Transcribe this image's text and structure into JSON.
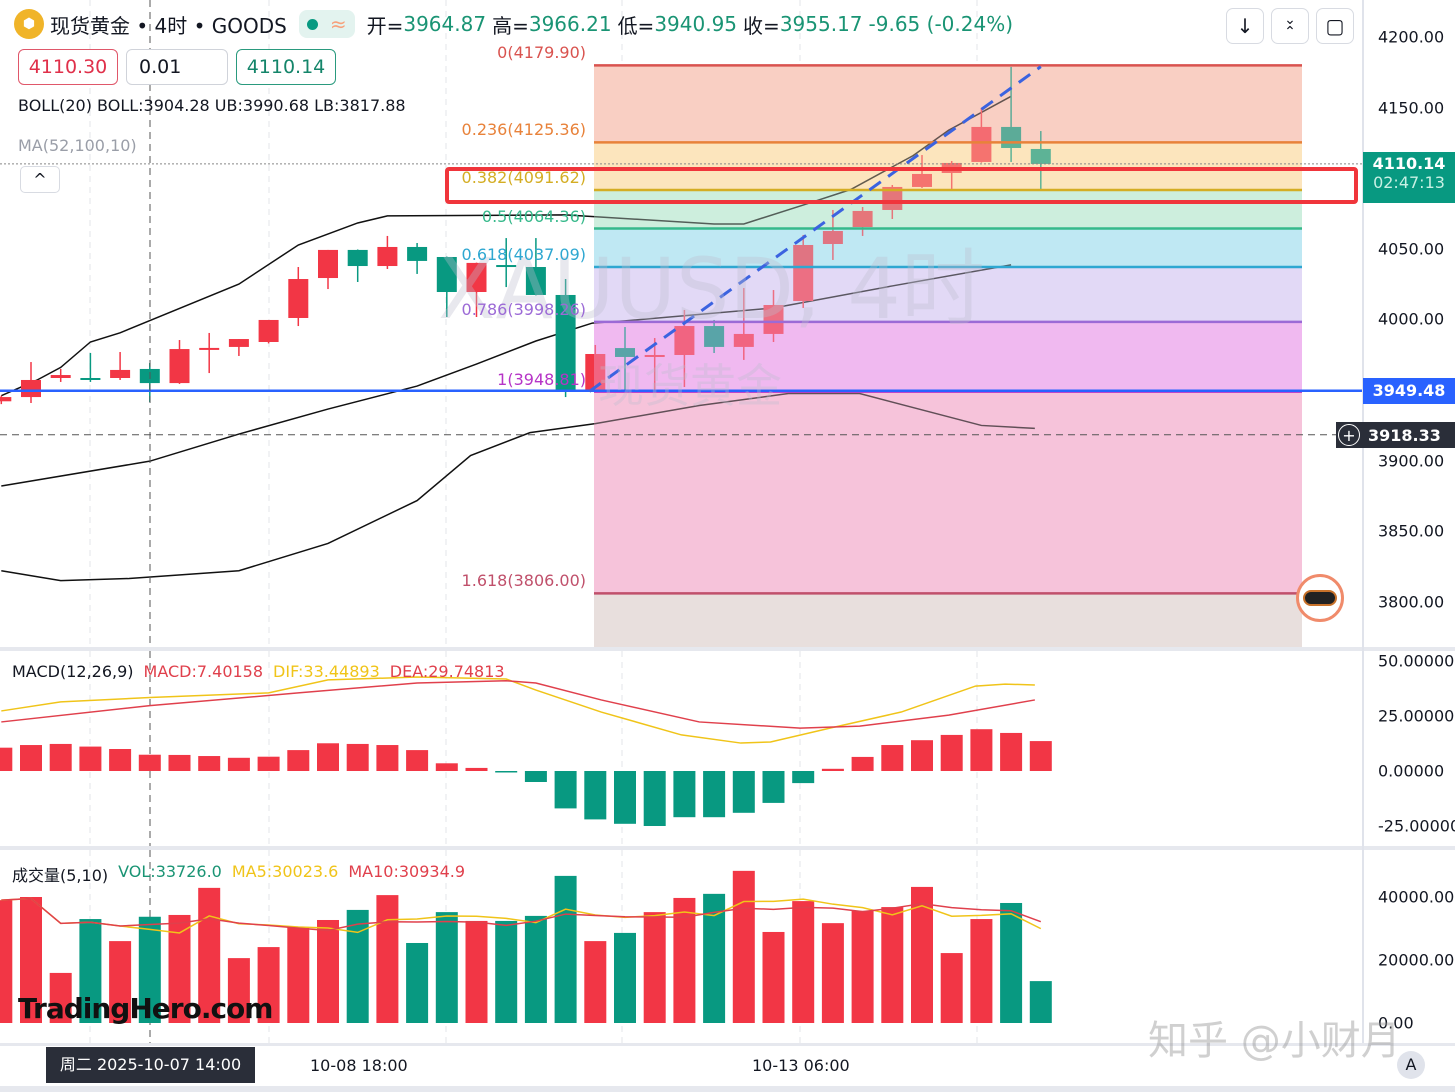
{
  "header": {
    "symbol_title": "现货黄金 • 4时 • GOODS",
    "approx_symbol": "≈",
    "open_label": "开=",
    "open": "3964.87",
    "high_label": "高=",
    "high": "3966.21",
    "low_label": "低=",
    "low": "3940.95",
    "close_label": "收=",
    "close": "3955.17",
    "change": "-9.65 (-0.24%)"
  },
  "trade": {
    "sell_price": "4110.30",
    "quantity": "0.01",
    "buy_price": "4110.14"
  },
  "indicators": {
    "boll": "BOLL(20)  BOLL:3904.28  UB:3990.68  LB:3817.88",
    "ma": "MA(52,100,10)",
    "collapse_symbol": "^"
  },
  "toolbar": {
    "down_icon": "↓",
    "collapse_icon": "⤧",
    "fullscreen_icon": "▢"
  },
  "watermark": {
    "symbol": "XAUUSD, 4时",
    "name": "现货黄金",
    "zhihu": "知乎 @小财月",
    "logo": "TradingHero.com"
  },
  "price_axis": {
    "ticks": [
      "4200.00",
      "4150.00",
      "4050.00",
      "4000.00",
      "3900.00",
      "3850.00",
      "3800.00"
    ],
    "current_price": "4110.14",
    "countdown": "02:47:13",
    "line_price": "3949.48",
    "crosshair_price": "3918.33"
  },
  "macd": {
    "label": "MACD(12,26,9)",
    "macd": "MACD:7.40158",
    "dif": "DIF:33.44893",
    "dea": "DEA:29.74813",
    "ticks": [
      "50.00000",
      "25.00000",
      "0.00000",
      "-25.00000"
    ]
  },
  "volume": {
    "label": "成交量(5,10)",
    "vol": "VOL:33726.0",
    "ma5": "MA5:30023.6",
    "ma10": "MA10:30934.9",
    "ticks": [
      "40000.00",
      "20000.00",
      "0.00"
    ]
  },
  "time_axis": {
    "crosshair": "周二 2025-10-07  14:00",
    "labels": [
      "10-08 18:00",
      "10-13 06:00"
    ],
    "auto_button": "A"
  },
  "fib_levels": [
    {
      "label": "0(4179.90)",
      "price": 4179.9,
      "color": "#d9534f",
      "fill": "#f9cfc3"
    },
    {
      "label": "0.236(4125.36)",
      "price": 4125.36,
      "color": "#e8823a",
      "fill": "#fce5bd"
    },
    {
      "label": "0.382(4091.62)",
      "price": 4091.62,
      "color": "#d4ad23",
      "fill": "#cdeedd"
    },
    {
      "label": "0.5(4064.36)",
      "price": 4064.36,
      "color": "#36b98b",
      "fill": "#bfe9f3"
    },
    {
      "label": "0.618(4037.09)",
      "price": 4037.09,
      "color": "#2ea7d1",
      "fill": "#e2d9f6"
    },
    {
      "label": "0.786(3998.26)",
      "price": 3998.26,
      "color": "#9c6ad6",
      "fill": "#f0b9f0"
    },
    {
      "label": "1(3948.81)",
      "price": 3948.81,
      "color": "#b634c7",
      "fill": "#f6c3da"
    },
    {
      "label": "1.618(3806.00)",
      "price": 3806.0,
      "color": "#c0506b",
      "fill": "#e8dfde"
    }
  ],
  "colors": {
    "up": "#f23645",
    "down": "#089981",
    "accent_blue": "#2962ff",
    "highlight": "#f0353b"
  },
  "chart_data": {
    "type": "candlestick",
    "ohlc": [
      [
        3942,
        3946,
        3940,
        3945
      ],
      [
        3945.0,
        3969.8,
        3940.8,
        3957.1
      ],
      [
        3958.5,
        3964.9,
        3955.7,
        3960.6
      ],
      [
        3958.5,
        3976.2,
        3955.7,
        3958.3
      ],
      [
        3958.5,
        3976.9,
        3957.1,
        3964.2
      ],
      [
        3964.9,
        3969.1,
        3941.5,
        3954.9
      ],
      [
        3954.9,
        3985.4,
        3954.3,
        3979.0
      ],
      [
        3979.5,
        3990.4,
        3962.0,
        3979.8
      ],
      [
        3980.5,
        3986.1,
        3974.1,
        3986.1
      ],
      [
        3984.0,
        3999.6,
        3983.0,
        3999.6
      ],
      [
        4001.0,
        4037.1,
        3995.3,
        4028.6
      ],
      [
        4029.3,
        4049.2,
        4021.5,
        4049.2
      ],
      [
        4049.2,
        4049.5,
        4026.5,
        4037.8
      ],
      [
        4037.8,
        4059.1,
        4035.7,
        4051.3
      ],
      [
        4051.3,
        4054.1,
        4032.2,
        4041.4
      ],
      [
        4044.2,
        4044.5,
        4001.7,
        4019.4
      ],
      [
        4019.4,
        4040.2,
        4001.7,
        4040.0
      ],
      [
        4038.5,
        4057.6,
        4022.9,
        4038.2
      ],
      [
        4037.1,
        4057.6,
        4017.0,
        4017.3
      ],
      [
        4017.3,
        4028.6,
        3945.0,
        3950.0
      ],
      [
        3950.0,
        3981.9,
        3949.5,
        3975.5
      ],
      [
        3979.7,
        3994.6,
        3950.0,
        3973.4
      ],
      [
        3974.5,
        3986.8,
        3950.0,
        3974.8
      ],
      [
        3974.8,
        4006.7,
        3952.1,
        3995.3
      ],
      [
        3995.3,
        3999.6,
        3976.2,
        3980.5
      ],
      [
        3980.5,
        4022.2,
        3971.3,
        3989.7
      ],
      [
        3989.7,
        4020.8,
        3984.0,
        4010.2
      ],
      [
        4013.0,
        4059.8,
        4008.1,
        4052.7
      ],
      [
        4053.4,
        4077.5,
        4042.1,
        4062.6
      ],
      [
        4065.4,
        4079.6,
        4059.1,
        4076.8
      ],
      [
        4077.5,
        4095.2,
        4071.1,
        4093.8
      ],
      [
        4093.8,
        4116.4,
        4093.1,
        4103.0
      ],
      [
        4103.7,
        4112.2,
        4091.6,
        4110.8
      ],
      [
        4111.5,
        4149.7,
        4111.0,
        4136.3
      ],
      [
        4136.3,
        4178.8,
        4111.5,
        4121.4
      ],
      [
        4120.7,
        4133.4,
        4091.6,
        4110.1
      ]
    ],
    "boll_upper": [
      [
        0,
        3946
      ],
      [
        1.2,
        3957
      ],
      [
        2,
        3966
      ],
      [
        3,
        3984
      ],
      [
        4,
        3990.5
      ],
      [
        8,
        4025
      ],
      [
        10,
        4052.7
      ],
      [
        12,
        4068.3
      ],
      [
        13,
        4073.3
      ],
      [
        19,
        4074
      ],
      [
        24,
        4067.6
      ],
      [
        25,
        4067.6
      ],
      [
        27,
        4081
      ],
      [
        28.6,
        4092
      ],
      [
        30.7,
        4116
      ],
      [
        31.9,
        4134
      ],
      [
        34,
        4158
      ]
    ],
    "boll_mid": [
      [
        0,
        3882
      ],
      [
        5,
        3899.6
      ],
      [
        8,
        3918.8
      ],
      [
        11,
        3936.5
      ],
      [
        14,
        3952.8
      ],
      [
        16,
        3968.4
      ],
      [
        18,
        3984.7
      ],
      [
        19.9,
        3997.4
      ],
      [
        21,
        3999
      ],
      [
        26,
        4008.1
      ],
      [
        30,
        4023.7
      ],
      [
        34,
        4038.6
      ]
    ],
    "boll_lower": [
      [
        0,
        3822
      ],
      [
        2,
        3815
      ],
      [
        4.3,
        3816.5
      ],
      [
        8,
        3822
      ],
      [
        11,
        3841.3
      ],
      [
        14,
        3871.7
      ],
      [
        15.8,
        3903.6
      ],
      [
        17.8,
        3919.8
      ],
      [
        20,
        3926.2
      ],
      [
        23.5,
        3939
      ],
      [
        26.5,
        3947.5
      ],
      [
        28.9,
        3947.5
      ],
      [
        33,
        3924.9
      ],
      [
        34.8,
        3922.8
      ]
    ],
    "trendline": [
      [
        19.8,
        3949
      ],
      [
        35,
        4179
      ]
    ],
    "macd_hist": [
      10.6,
      11.8,
      12.3,
      11.1,
      10.0,
      7.4,
      7.3,
      6.8,
      6.0,
      6.5,
      9.5,
      12.6,
      12.3,
      11.8,
      9.5,
      3.5,
      1.4,
      -0.5,
      -5,
      -17,
      -22,
      -24,
      -25,
      -21,
      -21,
      -19,
      -14.5,
      -5.5,
      1,
      6.4,
      11.8,
      14,
      16.4,
      19,
      17.3,
      13.6
    ],
    "dif": [
      [
        0,
        27.3
      ],
      [
        2,
        31.4
      ],
      [
        5,
        33.4
      ],
      [
        9,
        35.5
      ],
      [
        11,
        41.4
      ],
      [
        14,
        42.7
      ],
      [
        17,
        41.8
      ],
      [
        18,
        36.8
      ],
      [
        20.2,
        26.8
      ],
      [
        22.9,
        16.4
      ],
      [
        24.9,
        12.7
      ],
      [
        25.9,
        13.2
      ],
      [
        27.9,
        19.5
      ],
      [
        30.3,
        26.8
      ],
      [
        32.8,
        38.6
      ],
      [
        33.8,
        39.5
      ],
      [
        34.8,
        39.1
      ]
    ],
    "dea": [
      [
        0,
        22.3
      ],
      [
        5,
        29.7
      ],
      [
        10,
        35.5
      ],
      [
        14,
        40
      ],
      [
        17,
        41
      ],
      [
        18,
        40
      ],
      [
        20.2,
        32.3
      ],
      [
        23.5,
        22.3
      ],
      [
        26.9,
        19.5
      ],
      [
        28.9,
        20.4
      ],
      [
        31.9,
        25.4
      ],
      [
        34.8,
        32.3
      ]
    ],
    "volume": [
      39000,
      40000,
      15900,
      33000,
      26000,
      33726,
      34300,
      42900,
      20600,
      24100,
      30500,
      32700,
      35900,
      40600,
      25400,
      35200,
      32400,
      32400,
      34000,
      46700,
      26000,
      28600,
      35200,
      39700,
      41000,
      48300,
      28900,
      38700,
      31700,
      35600,
      36800,
      43200,
      22200,
      33000,
      38100,
      13300
    ],
    "volume_up": [
      1,
      1,
      1,
      0,
      1,
      0,
      1,
      1,
      1,
      1,
      1,
      1,
      0,
      1,
      0,
      0,
      1,
      0,
      0,
      0,
      1,
      0,
      1,
      1,
      0,
      1,
      1,
      1,
      1,
      1,
      1,
      1,
      1,
      1,
      0,
      0
    ],
    "price_range": [
      3775,
      4225
    ],
    "macd_range": [
      -30,
      55
    ],
    "volume_range": [
      0,
      48000
    ]
  }
}
